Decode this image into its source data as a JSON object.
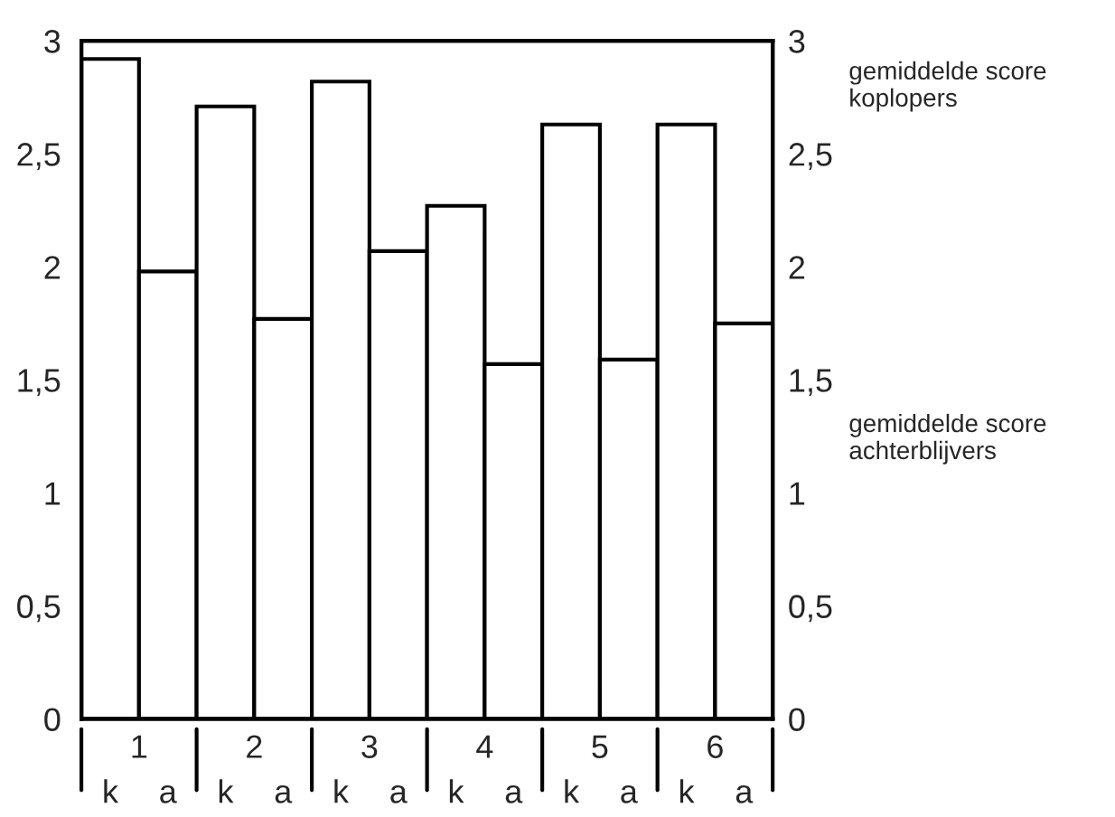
{
  "chart_data": {
    "type": "bar",
    "categories": [
      "k",
      "a",
      "k",
      "a",
      "k",
      "a",
      "k",
      "a",
      "k",
      "a",
      "k",
      "a"
    ],
    "values": [
      2.92,
      1.98,
      2.71,
      1.77,
      2.82,
      2.07,
      2.27,
      1.57,
      2.63,
      1.59,
      2.63,
      1.75
    ],
    "color": "#ffffff",
    "ylim": [
      0,
      3
    ],
    "yticks": [
      0,
      {
        "value": 0.5,
        "label": "0,5"
      },
      1,
      {
        "value": 1.5,
        "label": "1,5"
      },
      2,
      {
        "value": 2.5,
        "label": "2,5"
      },
      3
    ],
    "y2lim": [
      0,
      3
    ],
    "y2ticks": [
      0,
      {
        "value": 0.5,
        "label": "0,5"
      },
      1,
      {
        "value": 1.5,
        "label": "1,5"
      },
      2,
      {
        "value": 2.5,
        "label": "2,5"
      },
      3
    ],
    "annotations": [
      "gemiddelde score\nkoplopers",
      "gemiddelde score\nachterblijvers",
      "1",
      "2",
      "3",
      "4",
      "5",
      "6"
    ],
    "grid": false,
    "legend": false
  }
}
